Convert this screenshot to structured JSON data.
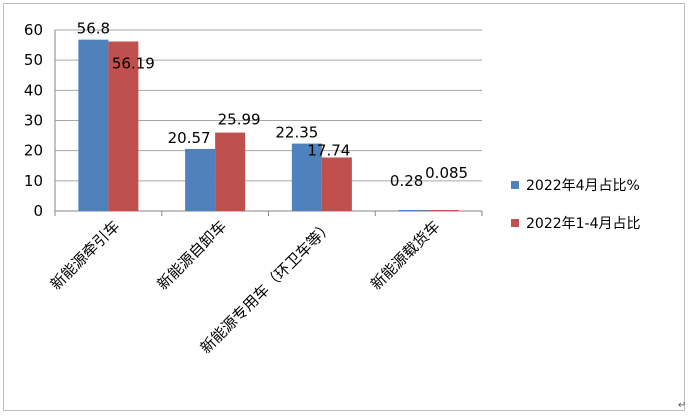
{
  "chart_data": {
    "type": "bar",
    "title": "",
    "xlabel": "",
    "ylabel": "",
    "categories": [
      "新能源牵引车",
      "新能源自卸车",
      "新能源专用车（环卫车等）",
      "新能源载货车"
    ],
    "series": [
      {
        "name": "2022年4月占比%",
        "values": [
          56.8,
          20.57,
          22.35,
          0.28
        ],
        "labels": [
          "56.8",
          "20.57",
          "22.35",
          "0.28"
        ],
        "color": "#4f81bd"
      },
      {
        "name": "2022年1-4月占比",
        "values": [
          56.19,
          25.99,
          17.74,
          0.085
        ],
        "labels": [
          "56.19",
          "25.99",
          "17.74",
          "0.085"
        ],
        "color": "#c0504d"
      }
    ],
    "ylim": [
      0,
      60
    ],
    "yticks": [
      "0",
      "10",
      "20",
      "30",
      "40",
      "50",
      "60"
    ],
    "grid": true,
    "legend_position": "right"
  },
  "end_mark": "↵"
}
